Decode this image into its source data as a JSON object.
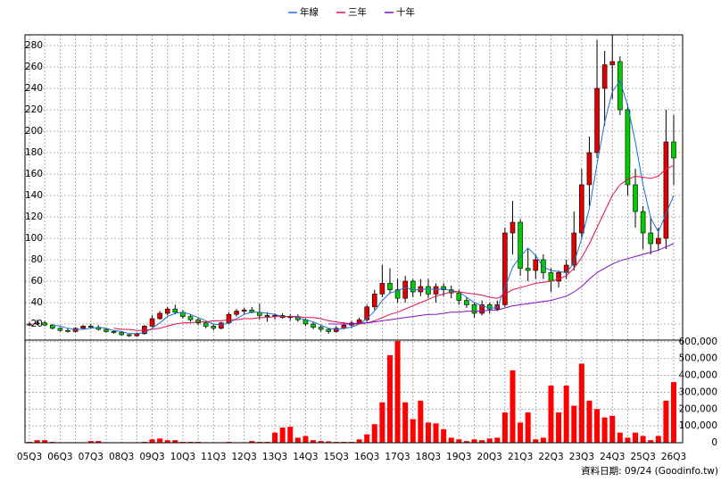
{
  "chart_data": {
    "type": "candlestick",
    "legend": "top",
    "grid": true,
    "up_color": "#e00000",
    "down_color": "#00cc00",
    "note": "資料日期: 09/24 (Goodinfo.tw)",
    "categories": [
      "05Q3",
      null,
      null,
      null,
      "06Q3",
      null,
      null,
      null,
      "07Q3",
      null,
      null,
      null,
      "08Q3",
      null,
      null,
      null,
      "09Q3",
      null,
      null,
      null,
      "10Q3",
      null,
      null,
      null,
      "11Q3",
      null,
      null,
      null,
      "12Q3",
      null,
      null,
      null,
      "13Q3",
      null,
      null,
      null,
      "14Q3",
      null,
      null,
      null,
      "15Q3",
      null,
      null,
      null,
      "16Q3",
      null,
      null,
      null,
      "17Q3",
      null,
      null,
      null,
      "18Q3",
      null,
      null,
      null,
      "19Q3",
      null,
      null,
      null,
      "20Q3",
      null,
      null,
      null,
      "21Q3",
      null,
      null,
      null,
      "22Q3",
      null,
      null,
      null,
      "23Q3",
      null,
      null,
      null,
      "24Q3",
      null,
      null,
      null,
      "25Q3",
      null,
      null,
      null,
      "26Q3"
    ],
    "ohlc": [
      [
        19,
        22,
        18,
        20
      ],
      [
        20,
        24,
        19,
        21
      ],
      [
        21,
        23,
        18,
        19
      ],
      [
        19,
        20,
        15,
        16
      ],
      [
        16,
        17,
        13,
        14
      ],
      [
        14,
        16,
        12,
        13
      ],
      [
        13,
        17,
        12,
        16
      ],
      [
        16,
        19,
        15,
        18
      ],
      [
        18,
        20,
        16,
        17
      ],
      [
        17,
        19,
        14,
        15
      ],
      [
        15,
        16,
        12,
        13
      ],
      [
        13,
        14,
        11,
        12
      ],
      [
        12,
        13,
        9,
        10
      ],
      [
        10,
        11,
        8,
        9
      ],
      [
        9,
        12,
        8,
        11
      ],
      [
        11,
        19,
        10,
        18
      ],
      [
        18,
        28,
        17,
        25
      ],
      [
        25,
        32,
        24,
        30
      ],
      [
        30,
        36,
        28,
        34
      ],
      [
        34,
        38,
        29,
        31
      ],
      [
        31,
        33,
        25,
        27
      ],
      [
        27,
        29,
        22,
        24
      ],
      [
        24,
        26,
        19,
        21
      ],
      [
        21,
        22,
        16,
        18
      ],
      [
        18,
        20,
        14,
        16
      ],
      [
        16,
        22,
        15,
        21
      ],
      [
        21,
        31,
        20,
        29
      ],
      [
        29,
        34,
        27,
        32
      ],
      [
        32,
        35,
        29,
        33
      ],
      [
        33,
        36,
        30,
        31
      ],
      [
        31,
        39,
        24,
        28
      ],
      [
        28,
        31,
        22,
        27
      ],
      [
        27,
        30,
        24,
        28
      ],
      [
        28,
        30,
        25,
        26
      ],
      [
        26,
        29,
        23,
        27
      ],
      [
        27,
        29,
        22,
        24
      ],
      [
        24,
        25,
        18,
        20
      ],
      [
        20,
        22,
        15,
        17
      ],
      [
        17,
        19,
        13,
        15
      ],
      [
        15,
        16,
        11,
        13
      ],
      [
        13,
        18,
        12,
        16
      ],
      [
        16,
        21,
        15,
        19
      ],
      [
        19,
        23,
        17,
        21
      ],
      [
        21,
        26,
        20,
        24
      ],
      [
        24,
        38,
        22,
        36
      ],
      [
        36,
        52,
        33,
        48
      ],
      [
        48,
        75,
        45,
        58
      ],
      [
        58,
        72,
        48,
        52
      ],
      [
        52,
        62,
        40,
        44
      ],
      [
        44,
        65,
        40,
        60
      ],
      [
        60,
        62,
        45,
        50
      ],
      [
        50,
        62,
        46,
        55
      ],
      [
        55,
        62,
        44,
        48
      ],
      [
        48,
        58,
        40,
        55
      ],
      [
        55,
        58,
        46,
        52
      ],
      [
        52,
        56,
        44,
        49
      ],
      [
        49,
        52,
        38,
        42
      ],
      [
        42,
        45,
        35,
        38
      ],
      [
        38,
        40,
        26,
        30
      ],
      [
        30,
        42,
        28,
        38
      ],
      [
        38,
        40,
        30,
        34
      ],
      [
        34,
        42,
        32,
        38
      ],
      [
        38,
        110,
        36,
        105
      ],
      [
        105,
        135,
        85,
        115
      ],
      [
        115,
        118,
        65,
        72
      ],
      [
        72,
        90,
        60,
        70
      ],
      [
        70,
        85,
        62,
        80
      ],
      [
        80,
        85,
        62,
        68
      ],
      [
        68,
        72,
        50,
        60
      ],
      [
        60,
        70,
        54,
        68
      ],
      [
        68,
        80,
        62,
        75
      ],
      [
        75,
        125,
        70,
        105
      ],
      [
        105,
        165,
        100,
        150
      ],
      [
        150,
        195,
        130,
        180
      ],
      [
        180,
        285,
        175,
        240
      ],
      [
        240,
        275,
        205,
        262
      ],
      [
        262,
        295,
        230,
        265
      ],
      [
        265,
        270,
        215,
        220
      ],
      [
        220,
        225,
        140,
        150
      ],
      [
        150,
        165,
        110,
        125
      ],
      [
        125,
        130,
        90,
        105
      ],
      [
        105,
        120,
        85,
        95
      ],
      [
        95,
        110,
        88,
        100
      ],
      [
        100,
        220,
        90,
        190
      ],
      [
        190,
        215,
        150,
        175
      ]
    ],
    "ylim": [
      5,
      290
    ],
    "yticks": [
      20,
      40,
      60,
      80,
      100,
      120,
      140,
      160,
      180,
      200,
      220,
      240,
      260,
      280
    ],
    "series": [
      {
        "name": "年線",
        "color": "#1f6fd0",
        "values": [
          null,
          null,
          null,
          19,
          18,
          16,
          15,
          15,
          16,
          17,
          16,
          14,
          13,
          11,
          11,
          12,
          16,
          21,
          27,
          30,
          31,
          29,
          26,
          23,
          20,
          19,
          21,
          25,
          29,
          31,
          31,
          30,
          29,
          27,
          27,
          26,
          24,
          22,
          19,
          16,
          15,
          16,
          17,
          20,
          25,
          32,
          42,
          49,
          51,
          54,
          52,
          52,
          53,
          52,
          53,
          51,
          50,
          45,
          40,
          37,
          35,
          35,
          54,
          73,
          83,
          91,
          84,
          73,
          70,
          69,
          68,
          77,
          100,
          128,
          169,
          208,
          237,
          247,
          224,
          190,
          150,
          119,
          106,
          123,
          140
        ]
      },
      {
        "name": "三年",
        "color": "#e0104a",
        "values": [
          null,
          null,
          null,
          null,
          null,
          null,
          null,
          null,
          null,
          null,
          null,
          16,
          15,
          15,
          14,
          14,
          15,
          16,
          18,
          20,
          21,
          21,
          22,
          22,
          23,
          23,
          24,
          24,
          25,
          25,
          26,
          26,
          27,
          27,
          27,
          27,
          26,
          26,
          25,
          23,
          22,
          21,
          20,
          20,
          21,
          23,
          26,
          29,
          31,
          34,
          37,
          40,
          43,
          46,
          48,
          50,
          50,
          49,
          48,
          47,
          45,
          44,
          48,
          52,
          54,
          56,
          58,
          59,
          60,
          62,
          65,
          72,
          82,
          95,
          110,
          125,
          140,
          150,
          155,
          158,
          157,
          156,
          158,
          165,
          168
        ]
      },
      {
        "name": "十年",
        "color": "#8010c0",
        "values": [
          null,
          null,
          null,
          null,
          null,
          null,
          null,
          null,
          null,
          null,
          null,
          null,
          null,
          null,
          null,
          null,
          null,
          null,
          null,
          null,
          null,
          null,
          null,
          null,
          null,
          null,
          null,
          null,
          null,
          null,
          null,
          null,
          null,
          null,
          null,
          null,
          null,
          null,
          null,
          20,
          20,
          20,
          20,
          21,
          21,
          22,
          23,
          24,
          25,
          26,
          27,
          28,
          29,
          29,
          30,
          31,
          31,
          32,
          32,
          32,
          33,
          33,
          35,
          37,
          38,
          39,
          40,
          41,
          42,
          44,
          46,
          50,
          55,
          62,
          68,
          72,
          76,
          79,
          81,
          83,
          85,
          87,
          89,
          92,
          95
        ]
      }
    ],
    "volume": {
      "color": "#ff0000",
      "axis": "y2",
      "values": [
        5000,
        15000,
        15000,
        5000,
        3000,
        3000,
        3000,
        3000,
        10000,
        10000,
        3000,
        3000,
        3000,
        3000,
        3000,
        5000,
        20000,
        25000,
        15000,
        15000,
        5000,
        5000,
        5000,
        3000,
        3000,
        3000,
        5000,
        3000,
        3000,
        10000,
        5000,
        5000,
        60000,
        90000,
        95000,
        30000,
        40000,
        15000,
        10000,
        8000,
        5000,
        5000,
        5000,
        20000,
        50000,
        110000,
        240000,
        520000,
        605000,
        240000,
        140000,
        250000,
        120000,
        115000,
        80000,
        30000,
        20000,
        10000,
        20000,
        15000,
        25000,
        30000,
        180000,
        430000,
        120000,
        180000,
        20000,
        30000,
        340000,
        180000,
        340000,
        220000,
        470000,
        250000,
        200000,
        150000,
        160000,
        60000,
        30000,
        60000,
        40000,
        15000,
        40000,
        250000,
        360000
      ]
    },
    "y2lim": [
      0,
      610000
    ],
    "y2ticks": [
      0,
      {
        "value": 100000,
        "label": "100,000"
      },
      {
        "value": 200000,
        "label": "200,000"
      },
      {
        "value": 300000,
        "label": "300,000"
      },
      {
        "value": 400000,
        "label": "400,000"
      },
      {
        "value": 500000,
        "label": "500,000"
      },
      {
        "value": 600000,
        "label": "600,000"
      }
    ]
  }
}
